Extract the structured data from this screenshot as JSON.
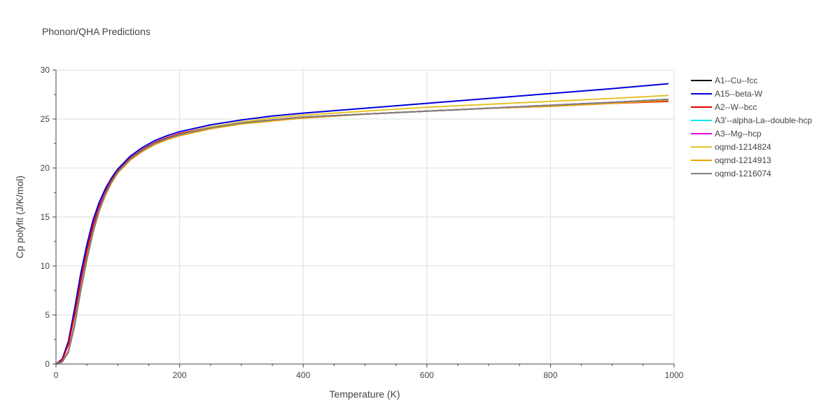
{
  "chart_data": {
    "type": "line",
    "title": "Phonon/QHA Predictions",
    "xlabel": "Temperature (K)",
    "ylabel": "Cp polyfit (J/K/mol)",
    "xlim": [
      0,
      1000
    ],
    "ylim": [
      0,
      30
    ],
    "xticks": [
      0,
      200,
      400,
      600,
      800,
      1000
    ],
    "yticks": [
      0,
      5,
      10,
      15,
      20,
      25,
      30
    ],
    "grid": true,
    "legend_position": "right",
    "series": [
      {
        "name": "A1--Cu--fcc",
        "color": "#000000",
        "x": [
          0,
          10,
          20,
          30,
          40,
          50,
          60,
          70,
          80,
          90,
          100,
          120,
          140,
          160,
          180,
          200,
          250,
          300,
          350,
          400,
          500,
          600,
          700,
          800,
          900,
          990
        ],
        "y": [
          0,
          0.2,
          1.3,
          4.0,
          7.6,
          10.8,
          13.6,
          15.8,
          17.4,
          18.6,
          19.6,
          20.9,
          21.8,
          22.5,
          23.0,
          23.4,
          24.1,
          24.6,
          24.9,
          25.2,
          25.5,
          25.8,
          26.1,
          26.4,
          26.7,
          27.0
        ]
      },
      {
        "name": "A15--beta-W",
        "color": "#0000dd",
        "x": [
          0,
          10,
          20,
          30,
          40,
          50,
          60,
          70,
          80,
          90,
          100,
          120,
          140,
          160,
          180,
          200,
          250,
          300,
          350,
          400,
          500,
          600,
          700,
          800,
          900,
          990
        ],
        "y": [
          0,
          0.5,
          2.3,
          5.6,
          9.2,
          12.2,
          14.7,
          16.5,
          17.9,
          19.0,
          19.9,
          21.2,
          22.1,
          22.8,
          23.3,
          23.7,
          24.4,
          24.9,
          25.3,
          25.6,
          26.1,
          26.6,
          27.1,
          27.6,
          28.1,
          28.6
        ]
      },
      {
        "name": "A2--W--bcc",
        "color": "#dd0000",
        "x": [
          0,
          10,
          20,
          30,
          40,
          50,
          60,
          70,
          80,
          90,
          100,
          120,
          140,
          160,
          180,
          200,
          250,
          300,
          350,
          400,
          500,
          600,
          700,
          800,
          900,
          990
        ],
        "y": [
          0,
          0.4,
          2.0,
          5.0,
          8.5,
          11.6,
          14.2,
          16.1,
          17.6,
          18.8,
          19.7,
          21.0,
          21.9,
          22.6,
          23.1,
          23.5,
          24.2,
          24.6,
          24.9,
          25.1,
          25.5,
          25.8,
          26.1,
          26.3,
          26.6,
          26.8
        ]
      },
      {
        "name": "A3'--alpha-La--double-hcp",
        "color": "#00e5ee",
        "x": [
          0,
          10,
          20,
          30,
          40,
          50,
          60,
          70,
          80,
          90,
          100,
          120,
          140,
          160,
          180,
          200,
          250,
          300,
          350,
          400,
          500,
          600,
          700,
          800,
          900,
          990
        ],
        "y": [
          0,
          0.2,
          1.3,
          4.0,
          7.6,
          10.8,
          13.6,
          15.8,
          17.4,
          18.6,
          19.6,
          20.9,
          21.8,
          22.5,
          23.0,
          23.4,
          24.1,
          24.6,
          24.9,
          25.2,
          25.5,
          25.8,
          26.1,
          26.4,
          26.7,
          27.0
        ]
      },
      {
        "name": "A3--Mg--hcp",
        "color": "#ee00ee",
        "x": [
          0,
          10,
          20,
          30,
          40,
          50,
          60,
          70,
          80,
          90,
          100,
          120,
          140,
          160,
          180,
          200,
          250,
          300,
          350,
          400,
          500,
          600,
          700,
          800,
          900,
          990
        ],
        "y": [
          0,
          0.2,
          1.3,
          4.0,
          7.6,
          10.8,
          13.6,
          15.8,
          17.4,
          18.6,
          19.6,
          20.9,
          21.8,
          22.5,
          23.0,
          23.4,
          24.1,
          24.6,
          24.9,
          25.2,
          25.5,
          25.8,
          26.1,
          26.4,
          26.7,
          27.0
        ]
      },
      {
        "name": "oqmd-1214824",
        "color": "#e6c229",
        "x": [
          0,
          10,
          20,
          30,
          40,
          50,
          60,
          70,
          80,
          90,
          100,
          120,
          140,
          160,
          180,
          200,
          250,
          300,
          350,
          400,
          500,
          600,
          700,
          800,
          900,
          990
        ],
        "y": [
          0,
          0.2,
          1.2,
          3.8,
          7.4,
          10.6,
          13.4,
          15.6,
          17.2,
          18.5,
          19.5,
          20.9,
          21.8,
          22.5,
          23.0,
          23.4,
          24.2,
          24.7,
          25.1,
          25.4,
          25.8,
          26.2,
          26.5,
          26.8,
          27.1,
          27.4
        ]
      },
      {
        "name": "oqmd-1214913",
        "color": "#f0a500",
        "x": [
          0,
          10,
          20,
          30,
          40,
          50,
          60,
          70,
          80,
          90,
          100,
          120,
          140,
          160,
          180,
          200,
          250,
          300,
          350,
          400,
          500,
          600,
          700,
          800,
          900,
          990
        ],
        "y": [
          0,
          0.2,
          1.2,
          3.9,
          7.5,
          10.7,
          13.5,
          15.7,
          17.3,
          18.5,
          19.5,
          20.8,
          21.7,
          22.4,
          22.9,
          23.3,
          24.0,
          24.5,
          24.8,
          25.1,
          25.5,
          25.8,
          26.1,
          26.3,
          26.6,
          26.9
        ]
      },
      {
        "name": "oqmd-1216074",
        "color": "#808080",
        "x": [
          0,
          10,
          20,
          30,
          40,
          50,
          60,
          70,
          80,
          90,
          100,
          120,
          140,
          160,
          180,
          200,
          250,
          300,
          350,
          400,
          500,
          600,
          700,
          800,
          900,
          990
        ],
        "y": [
          0,
          0.2,
          1.2,
          3.9,
          7.5,
          10.7,
          13.5,
          15.7,
          17.3,
          18.6,
          19.6,
          20.9,
          21.8,
          22.5,
          23.0,
          23.4,
          24.1,
          24.6,
          24.9,
          25.2,
          25.5,
          25.8,
          26.1,
          26.4,
          26.7,
          27.0
        ]
      }
    ]
  }
}
